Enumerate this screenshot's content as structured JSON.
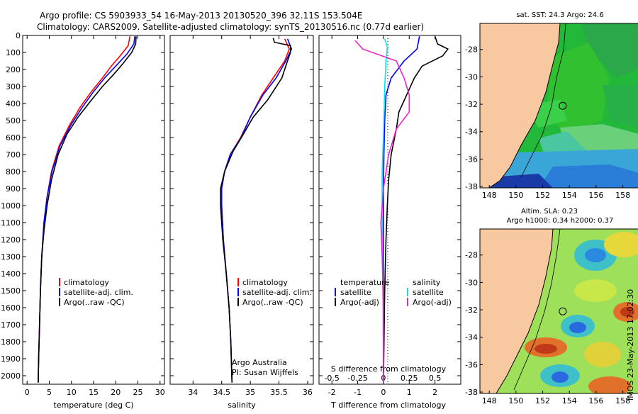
{
  "header": {
    "line1": "Argo profile: CS 5903933_54 16-May-2013 20130520_396 32.11S 153.504E",
    "line2": "Climatology: CARS2009. Satellite-adjusted climatology: synTS_20130516.nc (0.77d earlier)"
  },
  "side_label": "IMOS 23-May-2013 17:02:30",
  "attribution": {
    "line1": "Argo Australia",
    "line2": "PI: Susan Wijffels"
  },
  "colors": {
    "climatology": "#ff0000",
    "satellite": "#0000ff",
    "argo": "#000000",
    "sat_salinity": "#00e5ee",
    "argo_salinity_diff": "#ee22cc",
    "land": "#f8c8a0"
  },
  "chart_data": [
    {
      "type": "line",
      "xlabel": "temperature (deg C)",
      "xlim": [
        -1,
        31
      ],
      "xticks": [
        "0",
        "5",
        "10",
        "15",
        "20",
        "25",
        "30"
      ],
      "ylim": [
        2050,
        0
      ],
      "yticks": [
        "0",
        "100",
        "200",
        "300",
        "400",
        "500",
        "600",
        "700",
        "800",
        "900",
        "1000",
        "1100",
        "1200",
        "1300",
        "1400",
        "1500",
        "1600",
        "1700",
        "1800",
        "1900",
        "2000"
      ],
      "legend": [
        "climatology",
        "satellite-adj. clim.",
        "Argo(..raw -QC)"
      ],
      "series": [
        {
          "name": "climatology",
          "color": "#ff0000",
          "points": [
            [
              23.2,
              5
            ],
            [
              22.8,
              60
            ],
            [
              21,
              120
            ],
            [
              19,
              180
            ],
            [
              17,
              250
            ],
            [
              14.5,
              330
            ],
            [
              12,
              420
            ],
            [
              9.5,
              530
            ],
            [
              7.2,
              650
            ],
            [
              5.5,
              800
            ],
            [
              4.5,
              950
            ],
            [
              3.8,
              1100
            ],
            [
              3.3,
              1300
            ],
            [
              3,
              1500
            ],
            [
              2.8,
              1700
            ],
            [
              2.6,
              1900
            ],
            [
              2.5,
              2040
            ]
          ]
        },
        {
          "name": "satellite-adj. clim.",
          "color": "#0000ff",
          "points": [
            [
              24.3,
              5
            ],
            [
              24.1,
              50
            ],
            [
              22.5,
              110
            ],
            [
              20,
              180
            ],
            [
              17.5,
              250
            ],
            [
              15,
              330
            ],
            [
              12.5,
              420
            ],
            [
              9.8,
              530
            ],
            [
              7.4,
              650
            ],
            [
              5.6,
              800
            ],
            [
              4.5,
              950
            ],
            [
              3.8,
              1100
            ],
            [
              3.3,
              1300
            ],
            [
              3,
              1500
            ],
            [
              2.8,
              1700
            ],
            [
              2.6,
              1900
            ],
            [
              2.5,
              2040
            ]
          ]
        },
        {
          "name": "Argo(..raw -QC)",
          "color": "#000000",
          "points": [
            [
              24.6,
              5
            ],
            [
              24.5,
              50
            ],
            [
              23.6,
              100
            ],
            [
              21.5,
              170
            ],
            [
              19.5,
              230
            ],
            [
              17,
              300
            ],
            [
              14.5,
              380
            ],
            [
              11.5,
              480
            ],
            [
              9,
              580
            ],
            [
              7,
              700
            ],
            [
              5.5,
              850
            ],
            [
              4.5,
              1000
            ],
            [
              3.8,
              1150
            ],
            [
              3.3,
              1300
            ],
            [
              3,
              1500
            ],
            [
              2.8,
              1700
            ],
            [
              2.6,
              1900
            ],
            [
              2.5,
              2040
            ]
          ]
        }
      ]
    },
    {
      "type": "line",
      "xlabel": "salinity",
      "xlim": [
        33.6,
        36.1
      ],
      "xticks": [
        "34",
        "34.5",
        "35",
        "35.5",
        "36"
      ],
      "ylim": [
        2050,
        0
      ],
      "legend": [
        "climatology",
        "satellite-adj. clim.",
        "Argo(..raw -QC)"
      ],
      "series": [
        {
          "name": "climatology",
          "color": "#ff0000",
          "points": [
            [
              35.6,
              20
            ],
            [
              35.68,
              80
            ],
            [
              35.6,
              150
            ],
            [
              35.4,
              250
            ],
            [
              35.2,
              350
            ],
            [
              35.0,
              480
            ],
            [
              34.83,
              600
            ],
            [
              34.65,
              700
            ],
            [
              34.55,
              800
            ],
            [
              34.5,
              900
            ],
            [
              34.5,
              1000
            ],
            [
              34.53,
              1200
            ],
            [
              34.58,
              1400
            ],
            [
              34.63,
              1600
            ],
            [
              34.66,
              1800
            ],
            [
              34.68,
              2040
            ]
          ]
        },
        {
          "name": "satellite-adj. clim.",
          "color": "#0000ff",
          "points": [
            [
              35.65,
              20
            ],
            [
              35.72,
              80
            ],
            [
              35.62,
              150
            ],
            [
              35.45,
              250
            ],
            [
              35.22,
              350
            ],
            [
              35.0,
              480
            ],
            [
              34.84,
              600
            ],
            [
              34.65,
              700
            ],
            [
              34.55,
              800
            ],
            [
              34.5,
              900
            ],
            [
              34.5,
              1000
            ],
            [
              34.53,
              1200
            ],
            [
              34.58,
              1400
            ],
            [
              34.63,
              1600
            ],
            [
              34.66,
              1800
            ],
            [
              34.68,
              2040
            ]
          ]
        },
        {
          "name": "Argo(..raw -QC)",
          "color": "#000000",
          "points": [
            [
              35.4,
              15
            ],
            [
              35.42,
              40
            ],
            [
              35.7,
              60
            ],
            [
              35.7,
              100
            ],
            [
              35.65,
              150
            ],
            [
              35.55,
              250
            ],
            [
              35.3,
              380
            ],
            [
              35.05,
              480
            ],
            [
              34.88,
              580
            ],
            [
              34.7,
              680
            ],
            [
              34.55,
              800
            ],
            [
              34.48,
              900
            ],
            [
              34.48,
              1000
            ],
            [
              34.52,
              1200
            ],
            [
              34.58,
              1400
            ],
            [
              34.63,
              1600
            ],
            [
              34.66,
              1800
            ],
            [
              34.68,
              2040
            ]
          ]
        }
      ]
    },
    {
      "type": "line",
      "title": "S difference from climatology",
      "xlabel": "T difference from climatology",
      "xlim": [
        -2.5,
        3
      ],
      "xticks": [
        "-2",
        "-1",
        "0",
        "1",
        "2"
      ],
      "s_xticks": [
        "-0.5",
        "-0.25",
        "0",
        "0.25",
        "0.5"
      ],
      "ylim": [
        2050,
        0
      ],
      "legend": {
        "temperature_header": "temperature",
        "salinity_header": "salinity",
        "temperature_items": [
          "satellite",
          "Argo(-adj)"
        ],
        "salinity_items": [
          "satellite",
          "Argo(-adj)"
        ]
      },
      "series": [
        {
          "name": "satellite",
          "color": "#0000ff",
          "points": [
            [
              1.4,
              5
            ],
            [
              1.3,
              80
            ],
            [
              0.8,
              150
            ],
            [
              0.3,
              250
            ],
            [
              0.1,
              350
            ],
            [
              0.05,
              500
            ],
            [
              0.02,
              700
            ],
            [
              0,
              900
            ],
            [
              0,
              1200
            ],
            [
              0,
              1600
            ],
            [
              0,
              2040
            ]
          ]
        },
        {
          "name": "Argo(-adj)",
          "color": "#000000",
          "points": [
            [
              2.0,
              5
            ],
            [
              2.1,
              50
            ],
            [
              2.5,
              80
            ],
            [
              2.3,
              120
            ],
            [
              1.5,
              180
            ],
            [
              1.2,
              250
            ],
            [
              0.9,
              350
            ],
            [
              0.6,
              450
            ],
            [
              0.5,
              550
            ],
            [
              0.3,
              700
            ],
            [
              0.2,
              850
            ],
            [
              0.15,
              1000
            ],
            [
              0.1,
              1200
            ],
            [
              0.05,
              1500
            ],
            [
              0,
              2040
            ]
          ]
        },
        {
          "name": "satellite",
          "color": "#00e5ee",
          "points": [
            [
              0.05,
              20
            ],
            [
              0.15,
              70
            ],
            [
              0.1,
              150
            ],
            [
              0.05,
              300
            ],
            [
              0,
              600
            ],
            [
              -0.05,
              800
            ],
            [
              -0.05,
              1100
            ],
            [
              -0.02,
              1500
            ],
            [
              0,
              2040
            ]
          ]
        },
        {
          "name": "Argo(-adj)",
          "color": "#ee22cc",
          "points": [
            [
              -1.1,
              30
            ],
            [
              -0.8,
              80
            ],
            [
              0.5,
              150
            ],
            [
              0.8,
              250
            ],
            [
              1.0,
              350
            ],
            [
              1.0,
              450
            ],
            [
              0.5,
              550
            ],
            [
              0.2,
              700
            ],
            [
              0,
              900
            ],
            [
              -0.1,
              1100
            ],
            [
              -0.05,
              1300
            ],
            [
              0,
              1600
            ],
            [
              0,
              2040
            ]
          ]
        }
      ]
    },
    {
      "type": "heatmap",
      "title": "sat. SST: 24.3 Argo: 24.6",
      "xlim": [
        147.3,
        159.4
      ],
      "ylim": [
        -38.1,
        -26.1
      ],
      "xticks": [
        "148",
        "150",
        "152",
        "154",
        "156",
        "158"
      ],
      "yticks": [
        "-28",
        "-30",
        "-32",
        "-34",
        "-36",
        "-38"
      ],
      "argo_position": {
        "lon": 153.5,
        "lat": -32.11
      }
    },
    {
      "type": "heatmap",
      "title": "Altim. SLA: 0.23",
      "subtitle": "Argo h1000: 0.34 h2000: 0.37",
      "xlim": [
        147.3,
        159.4
      ],
      "ylim": [
        -38.1,
        -26.1
      ],
      "xticks": [
        "148",
        "150",
        "152",
        "154",
        "156",
        "158"
      ],
      "yticks": [
        "-28",
        "-30",
        "-32",
        "-34",
        "-36",
        "-38"
      ],
      "argo_position": {
        "lon": 153.5,
        "lat": -32.11
      }
    }
  ]
}
